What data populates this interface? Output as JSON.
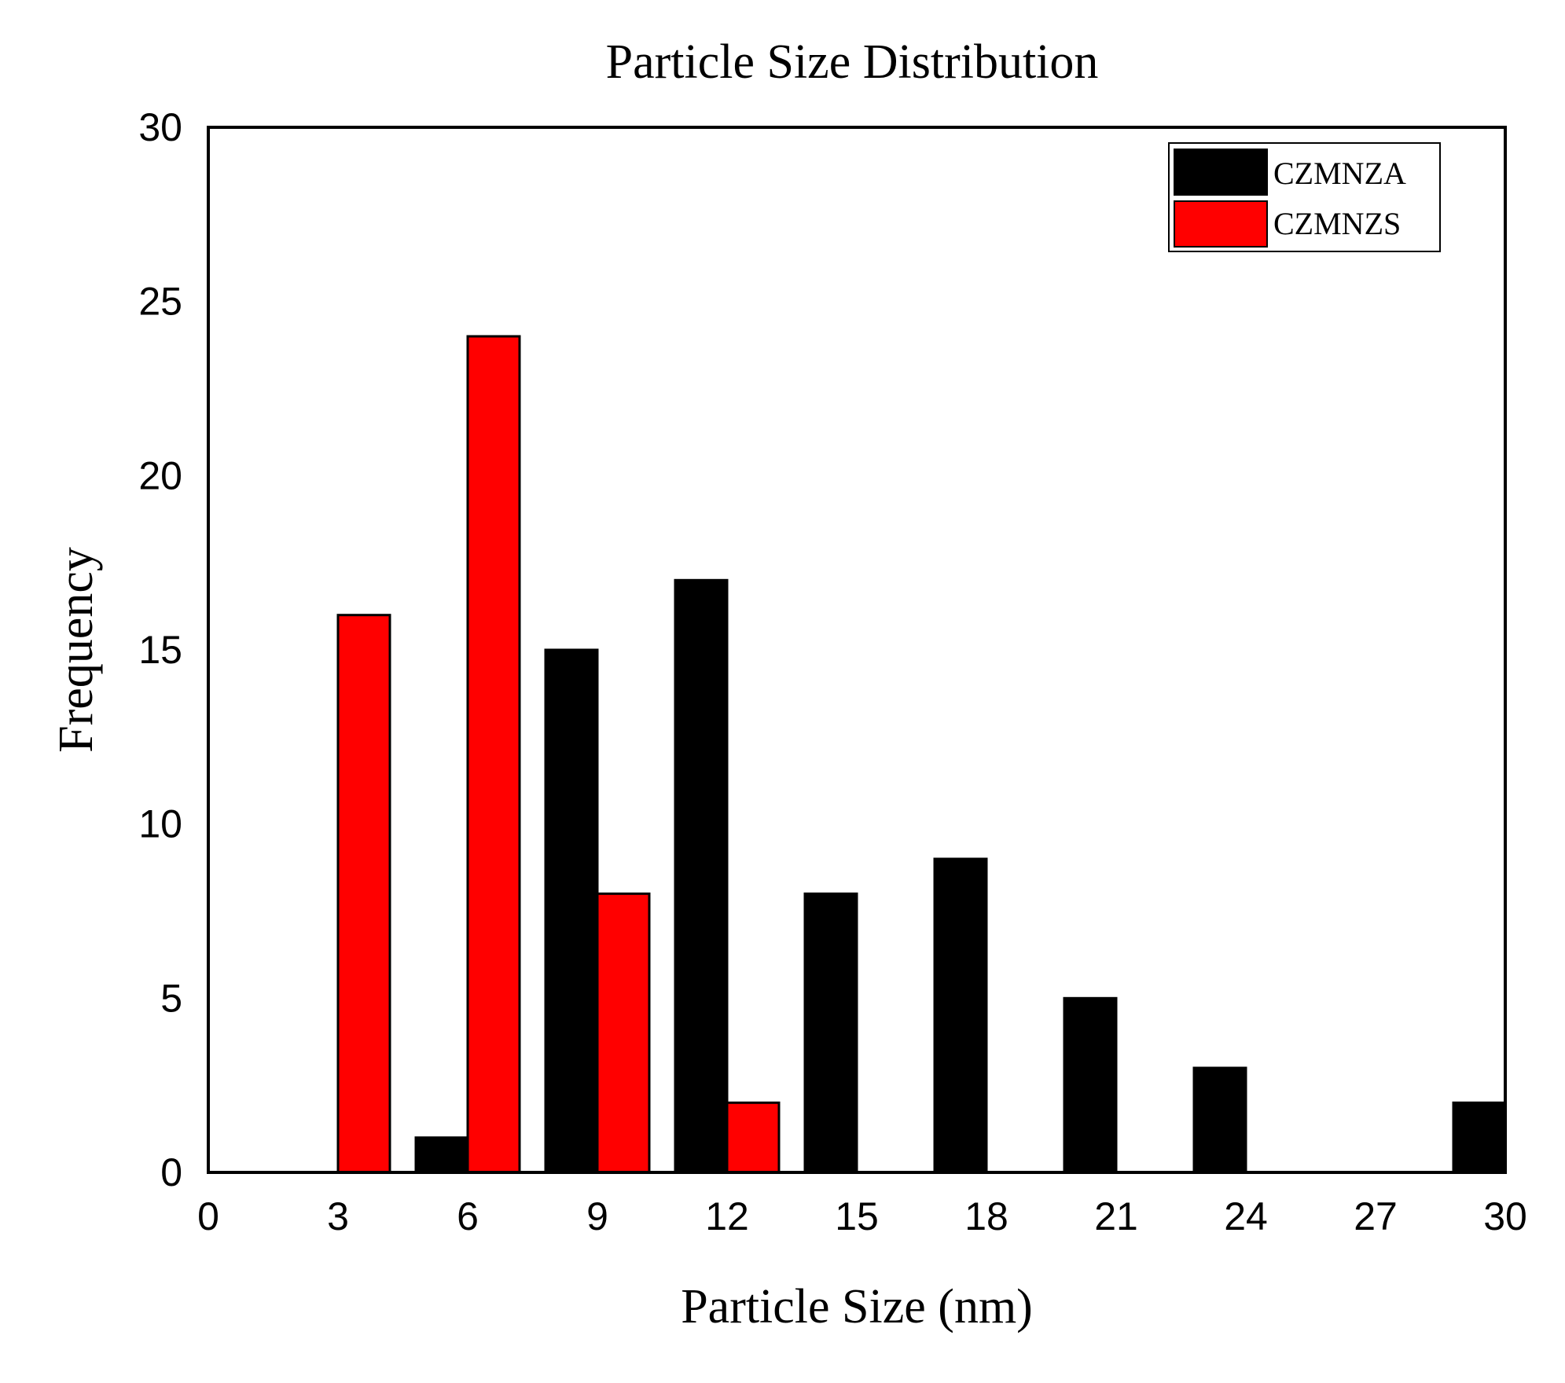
{
  "chart_data": {
    "type": "bar",
    "title": "Particle Size Distribution",
    "xlabel": "Particle Size (nm)",
    "ylabel": "Frequency",
    "xlim": [
      0,
      30
    ],
    "ylim": [
      0,
      30
    ],
    "x_ticks": [
      "0",
      "3",
      "6",
      "9",
      "12",
      "15",
      "18",
      "21",
      "24",
      "27",
      "30"
    ],
    "y_ticks": [
      "0",
      "5",
      "10",
      "15",
      "20",
      "25",
      "30"
    ],
    "grid": false,
    "legend_position": "top-right",
    "series": [
      {
        "name": "CZMNZA",
        "color": "#000000",
        "bars": [
          {
            "x_start": 4.8,
            "x_end": 6.0,
            "value": 1
          },
          {
            "x_start": 7.8,
            "x_end": 9.0,
            "value": 15
          },
          {
            "x_start": 10.8,
            "x_end": 12.0,
            "value": 17
          },
          {
            "x_start": 13.8,
            "x_end": 15.0,
            "value": 8
          },
          {
            "x_start": 16.8,
            "x_end": 18.0,
            "value": 9
          },
          {
            "x_start": 19.8,
            "x_end": 21.0,
            "value": 5
          },
          {
            "x_start": 22.8,
            "x_end": 24.0,
            "value": 3
          },
          {
            "x_start": 28.8,
            "x_end": 30.0,
            "value": 2
          }
        ]
      },
      {
        "name": "CZMNZS",
        "color": "#ff0000",
        "bars": [
          {
            "x_start": 3.0,
            "x_end": 4.2,
            "value": 16
          },
          {
            "x_start": 6.0,
            "x_end": 7.2,
            "value": 24
          },
          {
            "x_start": 9.0,
            "x_end": 10.2,
            "value": 8
          },
          {
            "x_start": 12.0,
            "x_end": 13.2,
            "value": 2
          }
        ]
      }
    ]
  }
}
